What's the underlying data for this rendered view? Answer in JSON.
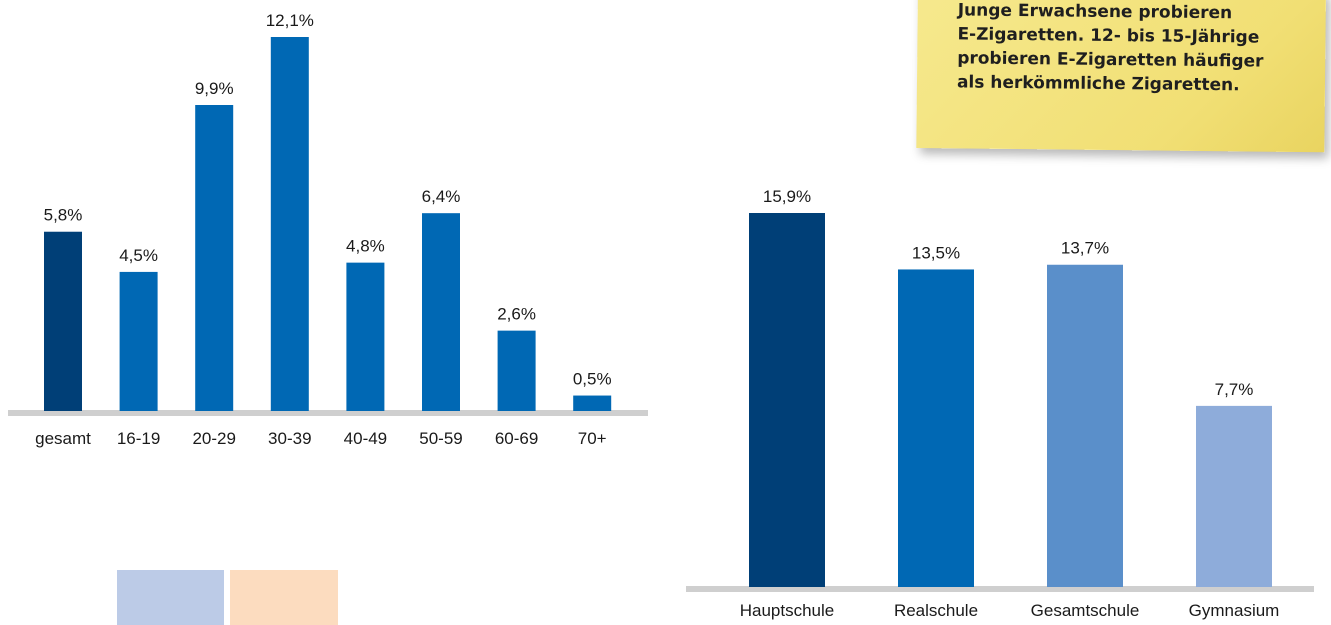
{
  "colors": {
    "baseline": "#cfcfcf",
    "text": "#1a1a1a"
  },
  "note": {
    "lines": [
      "Junge Erwachsene probieren",
      "E-Zigaretten. 12- bis 15-Jährige",
      "probieren E-Zigaretten häufiger",
      "als herkömmliche Zigaretten."
    ]
  },
  "chart_data": [
    {
      "type": "bar",
      "categories": [
        "gesamt",
        "16-19",
        "20-29",
        "30-39",
        "40-49",
        "50-59",
        "60-69",
        "70+"
      ],
      "values": [
        5.8,
        4.5,
        9.9,
        12.1,
        4.8,
        6.4,
        2.6,
        0.5
      ],
      "value_labels": [
        "5,8%",
        "4,5%",
        "9,9%",
        "12,1%",
        "4,8%",
        "6,4%",
        "2,6%",
        "0,5%"
      ],
      "bar_colors": [
        "#003f77",
        "#0068b4",
        "#0068b4",
        "#0068b4",
        "#0068b4",
        "#0068b4",
        "#0068b4",
        "#0068b4"
      ],
      "ylim": [
        0,
        12.1
      ],
      "grid": false
    },
    {
      "type": "bar",
      "categories": [
        "Hauptschule",
        "Realschule",
        "Gesamtschule",
        "Gymnasium"
      ],
      "values": [
        15.9,
        13.5,
        13.7,
        7.7
      ],
      "value_labels": [
        "15,9%",
        "13,5%",
        "13,7%",
        "7,7%"
      ],
      "bar_colors": [
        "#003f77",
        "#0068b4",
        "#5a8fca",
        "#8eacda"
      ],
      "ylim": [
        0,
        15.9
      ],
      "grid": false
    }
  ]
}
